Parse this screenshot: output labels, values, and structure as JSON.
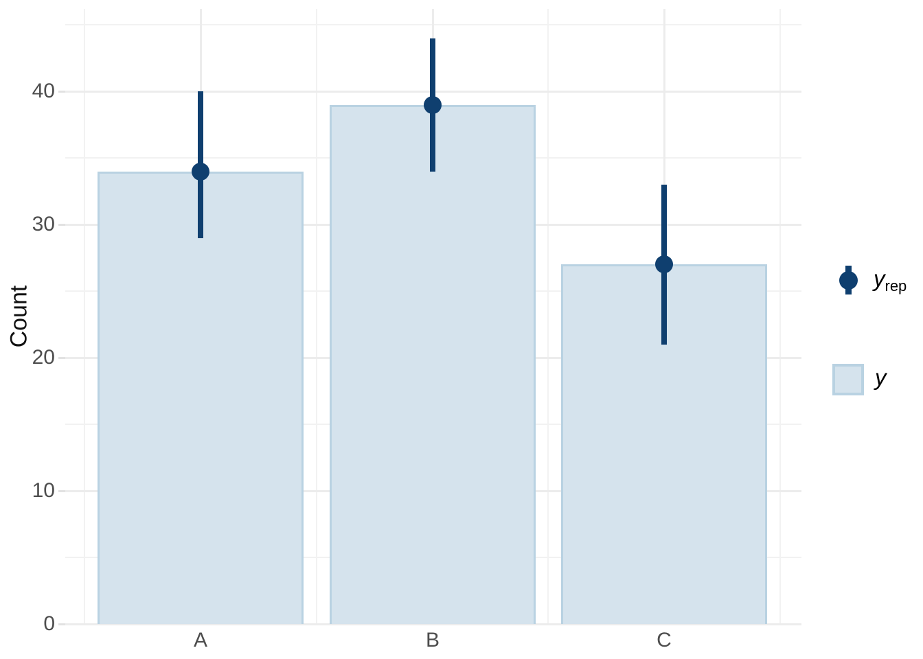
{
  "axis": {
    "y_title": "Count",
    "y_tick_labels": [
      "0",
      "10",
      "20",
      "30",
      "40"
    ],
    "x_tick_labels": [
      "A",
      "B",
      "C"
    ]
  },
  "legend": {
    "position": "right",
    "items": [
      {
        "label": "y",
        "sub": "rep",
        "key": "pointrange"
      },
      {
        "label": "y",
        "sub": "",
        "key": "bar"
      }
    ]
  },
  "colors": {
    "background": "#ffffff",
    "bar_fill": "#d5e3ed",
    "bar_border": "#b9d2e2",
    "point_dark": "#0f3f6f",
    "grid_major": "#ececec",
    "grid_minor": "#f2f2f2",
    "tick_text": "#4d4d4d",
    "axis_title_text": "#111111"
  },
  "chart_data": {
    "type": "bar",
    "title": "",
    "xlabel": "",
    "ylabel": "Count",
    "categories": [
      "A",
      "B",
      "C"
    ],
    "series": [
      {
        "name": "y",
        "type": "bar",
        "values": [
          34,
          39,
          27
        ]
      },
      {
        "name": "y_rep",
        "type": "pointrange",
        "values": [
          34,
          39,
          27
        ],
        "lower": [
          29,
          34,
          21
        ],
        "upper": [
          40,
          44,
          33
        ]
      }
    ],
    "y_ticks": [
      0,
      10,
      20,
      30,
      40
    ],
    "y_minor_ticks": [
      5,
      15,
      25,
      35,
      45
    ],
    "ylim": [
      0,
      46.2
    ],
    "grid": true,
    "legend_position": "right"
  }
}
